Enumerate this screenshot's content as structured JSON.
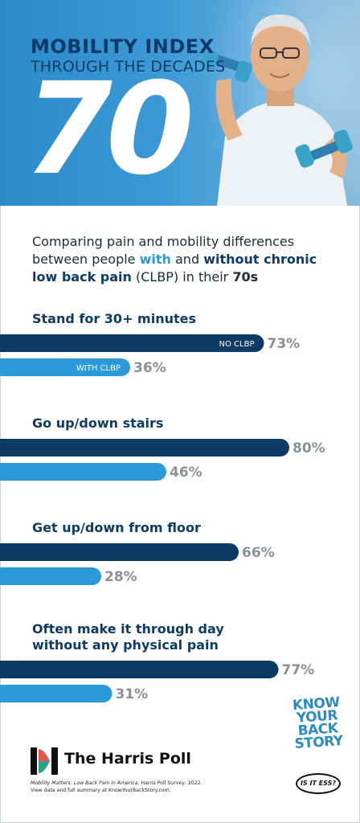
{
  "header": {
    "title_line1": "MOBILITY INDEX",
    "title_line2": "THROUGH THE DECADES",
    "decade": "70"
  },
  "intro": {
    "part1": "Comparing pain and mobility differences between people ",
    "with": "with",
    "part2": " and ",
    "without": "without chronic low back pain",
    "part3": " (CLBP) in their ",
    "age": "70s"
  },
  "colors": {
    "no_clbp": "#0d3b66",
    "with_clbp": "#2a9ad8",
    "label": "#0d3b66",
    "pct": "#8a8f96"
  },
  "chart_data": {
    "type": "bar",
    "orientation": "horizontal",
    "categories": [
      "Stand for 30+ minutes",
      "Go up/down stairs",
      "Get up/down from floor",
      "Often make it through day|without any physical pain"
    ],
    "series": [
      {
        "name": "NO CLBP",
        "values": [
          73,
          80,
          66,
          77
        ],
        "labels": [
          "73%",
          "80%",
          "66%",
          "77%"
        ]
      },
      {
        "name": "WITH CLBP",
        "values": [
          36,
          46,
          28,
          31
        ],
        "labels": [
          "36%",
          "46%",
          "28%",
          "31%"
        ]
      }
    ],
    "xlim": [
      0,
      100
    ],
    "legend": "inside-first-bars",
    "grid": false
  },
  "footer": {
    "brand": "The Harris Poll",
    "source_title": "Mobility Matters: Low Back Pain in America",
    "source_rest": ", Harris Poll Survey, 2022.",
    "source_line2": "View data and full summary at KnowYourBackStory.com.",
    "kybs_lines": [
      "KNOW",
      "YOUR",
      "BACK",
      "STORY"
    ],
    "kybs_badge": "IS IT ESS?"
  }
}
